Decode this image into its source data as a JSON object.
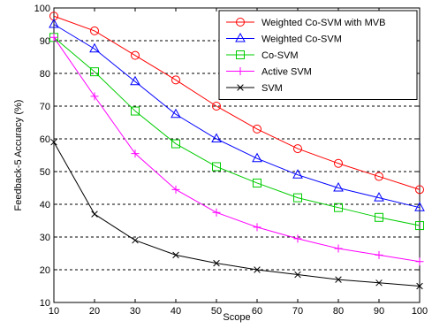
{
  "chart_data": {
    "type": "line",
    "xlabel": "Scope",
    "ylabel": "Feedback-5 Accuracy (%)",
    "x": [
      10,
      20,
      30,
      40,
      50,
      60,
      70,
      80,
      90,
      100
    ],
    "xlim": [
      10,
      100
    ],
    "ylim": [
      10,
      100
    ],
    "xticks": [
      "10",
      "20",
      "30",
      "40",
      "50",
      "60",
      "70",
      "80",
      "90",
      "100"
    ],
    "yticks": [
      "10",
      "20",
      "30",
      "40",
      "50",
      "60",
      "70",
      "80",
      "90",
      "100"
    ],
    "grid": "horizontal dashed",
    "legend_position": "top-right",
    "series": [
      {
        "name": "Weighted Co-SVM with MVB",
        "color": "#ff0000",
        "marker": "circle",
        "values": [
          97.5,
          93,
          85.5,
          78,
          70,
          63,
          57,
          52.5,
          48.5,
          44.5
        ]
      },
      {
        "name": "Weighted Co-SVM",
        "color": "#0000ff",
        "marker": "triangle",
        "values": [
          95,
          87.5,
          77.5,
          67.5,
          60,
          54,
          49,
          45,
          42,
          39
        ]
      },
      {
        "name": "Co-SVM",
        "color": "#00cc00",
        "marker": "square",
        "values": [
          91,
          80.5,
          68.5,
          58.5,
          51.5,
          46.5,
          42,
          39,
          36,
          33.5
        ]
      },
      {
        "name": "Active SVM",
        "color": "#ff00ff",
        "marker": "plus",
        "values": [
          91,
          73,
          55.5,
          44.5,
          37.5,
          33,
          29.5,
          26.5,
          24.5,
          22.5
        ]
      },
      {
        "name": "SVM",
        "color": "#000000",
        "marker": "x",
        "values": [
          59,
          37,
          29,
          24.5,
          22,
          20,
          18.5,
          17,
          16,
          15
        ]
      }
    ]
  }
}
